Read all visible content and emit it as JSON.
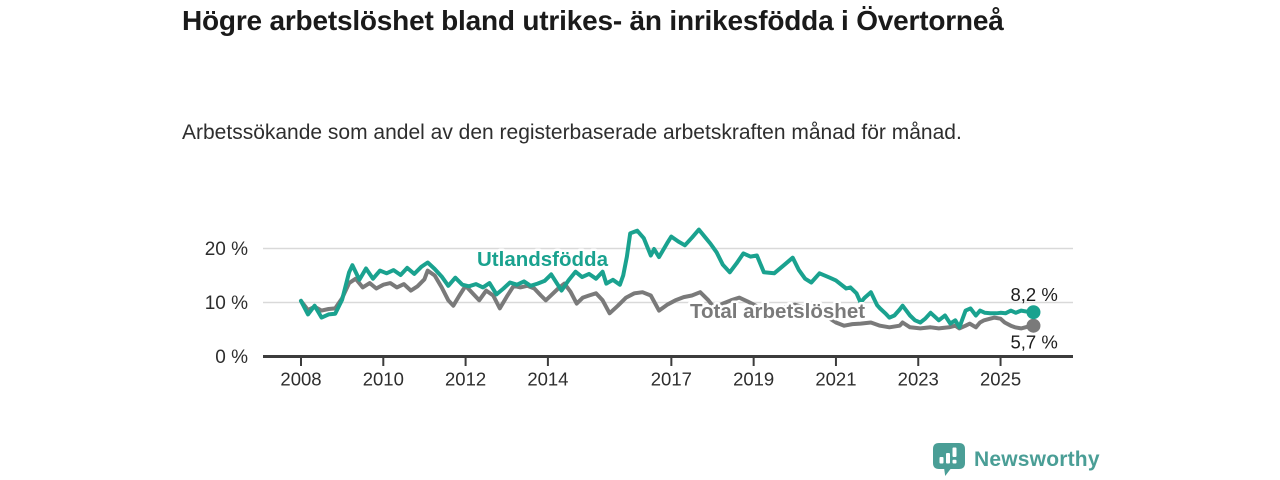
{
  "header": {
    "title": "Högre arbetslöshet bland utrikes- än inrikesfödda i Övertorneå",
    "subtitle": "Arbetssökande som andel av den registerbaserade arbetskraften månad för månad."
  },
  "chart_data": {
    "type": "line",
    "title": "Högre arbetslöshet bland utrikes- än inrikesfödda i Övertorneå",
    "xlabel": "",
    "ylabel": "",
    "x_axis": {
      "tick_labels": [
        "2008",
        "2010",
        "2012",
        "2014",
        "2017",
        "2019",
        "2021",
        "2023",
        "2025"
      ],
      "range": [
        2007.1,
        2026.8
      ]
    },
    "y_axis": {
      "ticks": [
        {
          "value": 0,
          "label": "0 %"
        },
        {
          "value": 10,
          "label": "10 %"
        },
        {
          "value": 20,
          "label": "20 %"
        }
      ],
      "range": [
        0,
        24.5
      ],
      "grid": true
    },
    "legend_position": "inline-labels",
    "colors": {
      "grid": "#d9d9d9",
      "axis": "#3c3c3c",
      "tick_text": "#2e2e2e",
      "value_label": "#1c1c1c"
    },
    "series": [
      {
        "name": "Total arbetslöshet",
        "color": "#7a7a7a",
        "end_label": "5,7 %",
        "end_value": 5.7,
        "end_label_side": "below",
        "points": [
          [
            2008.0,
            10.3
          ],
          [
            2008.17,
            8.6
          ],
          [
            2008.33,
            9.2
          ],
          [
            2008.5,
            8.5
          ],
          [
            2008.67,
            8.8
          ],
          [
            2008.83,
            8.9
          ],
          [
            2009.0,
            10.8
          ],
          [
            2009.17,
            13.6
          ],
          [
            2009.33,
            14.4
          ],
          [
            2009.5,
            12.8
          ],
          [
            2009.67,
            13.6
          ],
          [
            2009.83,
            12.6
          ],
          [
            2010.0,
            13.3
          ],
          [
            2010.17,
            13.6
          ],
          [
            2010.33,
            12.8
          ],
          [
            2010.5,
            13.4
          ],
          [
            2010.67,
            12.2
          ],
          [
            2010.83,
            13.0
          ],
          [
            2011.0,
            14.3
          ],
          [
            2011.08,
            15.9
          ],
          [
            2011.25,
            15.0
          ],
          [
            2011.42,
            12.8
          ],
          [
            2011.58,
            10.4
          ],
          [
            2011.7,
            9.4
          ],
          [
            2011.85,
            11.3
          ],
          [
            2012.0,
            13.1
          ],
          [
            2012.17,
            11.7
          ],
          [
            2012.33,
            10.4
          ],
          [
            2012.5,
            12.2
          ],
          [
            2012.67,
            11.3
          ],
          [
            2012.83,
            8.9
          ],
          [
            2013.0,
            11.1
          ],
          [
            2013.17,
            13.1
          ],
          [
            2013.33,
            12.8
          ],
          [
            2013.5,
            13.1
          ],
          [
            2013.67,
            12.6
          ],
          [
            2013.83,
            11.3
          ],
          [
            2013.95,
            10.4
          ],
          [
            2014.1,
            11.5
          ],
          [
            2014.25,
            12.6
          ],
          [
            2014.4,
            13.5
          ],
          [
            2014.55,
            12.0
          ],
          [
            2014.7,
            9.8
          ],
          [
            2014.85,
            10.9
          ],
          [
            2015.0,
            11.3
          ],
          [
            2015.17,
            11.7
          ],
          [
            2015.33,
            10.4
          ],
          [
            2015.5,
            8.0
          ],
          [
            2015.7,
            9.4
          ],
          [
            2015.9,
            10.9
          ],
          [
            2016.1,
            11.7
          ],
          [
            2016.3,
            11.9
          ],
          [
            2016.5,
            11.3
          ],
          [
            2016.7,
            8.5
          ],
          [
            2016.9,
            9.6
          ],
          [
            2017.1,
            10.4
          ],
          [
            2017.3,
            11.0
          ],
          [
            2017.5,
            11.3
          ],
          [
            2017.7,
            11.9
          ],
          [
            2017.9,
            10.4
          ],
          [
            2018.05,
            8.9
          ],
          [
            2018.25,
            9.8
          ],
          [
            2018.45,
            10.4
          ],
          [
            2018.65,
            10.9
          ],
          [
            2018.85,
            10.2
          ],
          [
            2019.05,
            9.4
          ],
          [
            2019.3,
            8.5
          ],
          [
            2019.55,
            8.8
          ],
          [
            2019.8,
            9.2
          ],
          [
            2020.0,
            9.6
          ],
          [
            2020.25,
            9.0
          ],
          [
            2020.5,
            8.3
          ],
          [
            2020.75,
            7.5
          ],
          [
            2021.0,
            6.3
          ],
          [
            2021.2,
            5.7
          ],
          [
            2021.4,
            6.0
          ],
          [
            2021.6,
            6.1
          ],
          [
            2021.85,
            6.3
          ],
          [
            2022.07,
            5.7
          ],
          [
            2022.3,
            5.4
          ],
          [
            2022.55,
            5.7
          ],
          [
            2022.62,
            6.3
          ],
          [
            2022.8,
            5.4
          ],
          [
            2023.05,
            5.2
          ],
          [
            2023.3,
            5.4
          ],
          [
            2023.5,
            5.2
          ],
          [
            2023.75,
            5.4
          ],
          [
            2023.9,
            5.7
          ],
          [
            2024.0,
            5.2
          ],
          [
            2024.15,
            5.7
          ],
          [
            2024.25,
            6.1
          ],
          [
            2024.4,
            5.4
          ],
          [
            2024.5,
            6.3
          ],
          [
            2024.6,
            6.7
          ],
          [
            2024.85,
            7.2
          ],
          [
            2025.0,
            7.0
          ],
          [
            2025.1,
            6.3
          ],
          [
            2025.25,
            5.7
          ],
          [
            2025.35,
            5.4
          ],
          [
            2025.5,
            5.2
          ],
          [
            2025.65,
            5.5
          ],
          [
            2025.8,
            5.7
          ]
        ]
      },
      {
        "name": "Utlandsfödda",
        "color": "#1aa28f",
        "end_label": "8,2 %",
        "end_value": 8.2,
        "end_label_side": "above",
        "points": [
          [
            2008.0,
            10.3
          ],
          [
            2008.17,
            7.8
          ],
          [
            2008.33,
            9.4
          ],
          [
            2008.5,
            7.2
          ],
          [
            2008.67,
            7.8
          ],
          [
            2008.83,
            7.9
          ],
          [
            2009.0,
            10.5
          ],
          [
            2009.17,
            15.6
          ],
          [
            2009.25,
            16.9
          ],
          [
            2009.42,
            14.2
          ],
          [
            2009.58,
            16.3
          ],
          [
            2009.75,
            14.4
          ],
          [
            2009.92,
            15.9
          ],
          [
            2010.08,
            15.4
          ],
          [
            2010.25,
            16.0
          ],
          [
            2010.42,
            15.1
          ],
          [
            2010.58,
            16.4
          ],
          [
            2010.75,
            15.3
          ],
          [
            2010.92,
            16.6
          ],
          [
            2011.08,
            17.4
          ],
          [
            2011.25,
            16.2
          ],
          [
            2011.42,
            14.8
          ],
          [
            2011.58,
            13.1
          ],
          [
            2011.75,
            14.6
          ],
          [
            2011.92,
            13.3
          ],
          [
            2012.08,
            13.0
          ],
          [
            2012.25,
            13.4
          ],
          [
            2012.42,
            12.8
          ],
          [
            2012.58,
            13.6
          ],
          [
            2012.75,
            11.5
          ],
          [
            2012.92,
            12.6
          ],
          [
            2013.08,
            13.7
          ],
          [
            2013.25,
            13.3
          ],
          [
            2013.42,
            13.9
          ],
          [
            2013.58,
            13.1
          ],
          [
            2013.75,
            13.5
          ],
          [
            2013.92,
            14.0
          ],
          [
            2014.08,
            15.2
          ],
          [
            2014.33,
            12.2
          ],
          [
            2014.5,
            14.1
          ],
          [
            2014.67,
            15.7
          ],
          [
            2014.83,
            14.7
          ],
          [
            2015.0,
            15.3
          ],
          [
            2015.17,
            14.4
          ],
          [
            2015.33,
            15.7
          ],
          [
            2015.42,
            13.5
          ],
          [
            2015.58,
            14.2
          ],
          [
            2015.75,
            13.3
          ],
          [
            2015.83,
            15.0
          ],
          [
            2015.92,
            18.5
          ],
          [
            2016.0,
            22.8
          ],
          [
            2016.17,
            23.3
          ],
          [
            2016.33,
            21.9
          ],
          [
            2016.5,
            18.7
          ],
          [
            2016.58,
            19.9
          ],
          [
            2016.7,
            18.4
          ],
          [
            2016.9,
            21.0
          ],
          [
            2017.0,
            22.2
          ],
          [
            2017.17,
            21.3
          ],
          [
            2017.33,
            20.6
          ],
          [
            2017.5,
            22.0
          ],
          [
            2017.67,
            23.5
          ],
          [
            2017.83,
            22.0
          ],
          [
            2017.95,
            20.9
          ],
          [
            2018.1,
            19.3
          ],
          [
            2018.25,
            17.0
          ],
          [
            2018.42,
            15.6
          ],
          [
            2018.58,
            17.2
          ],
          [
            2018.75,
            19.1
          ],
          [
            2018.92,
            18.5
          ],
          [
            2019.08,
            18.7
          ],
          [
            2019.25,
            15.6
          ],
          [
            2019.5,
            15.4
          ],
          [
            2019.75,
            17.0
          ],
          [
            2019.95,
            18.3
          ],
          [
            2020.1,
            16.0
          ],
          [
            2020.25,
            14.4
          ],
          [
            2020.4,
            13.7
          ],
          [
            2020.6,
            15.4
          ],
          [
            2020.85,
            14.6
          ],
          [
            2021.0,
            14.1
          ],
          [
            2021.25,
            12.6
          ],
          [
            2021.35,
            12.8
          ],
          [
            2021.5,
            11.7
          ],
          [
            2021.6,
            10.0
          ],
          [
            2021.7,
            10.9
          ],
          [
            2021.85,
            11.9
          ],
          [
            2022.0,
            9.5
          ],
          [
            2022.07,
            8.9
          ],
          [
            2022.2,
            8.0
          ],
          [
            2022.3,
            7.2
          ],
          [
            2022.42,
            7.6
          ],
          [
            2022.55,
            8.7
          ],
          [
            2022.62,
            9.4
          ],
          [
            2022.8,
            7.6
          ],
          [
            2022.92,
            6.7
          ],
          [
            2023.05,
            6.3
          ],
          [
            2023.17,
            7.0
          ],
          [
            2023.3,
            8.1
          ],
          [
            2023.5,
            6.7
          ],
          [
            2023.65,
            7.6
          ],
          [
            2023.78,
            6.1
          ],
          [
            2023.9,
            6.7
          ],
          [
            2024.0,
            5.4
          ],
          [
            2024.15,
            8.5
          ],
          [
            2024.27,
            8.9
          ],
          [
            2024.4,
            7.6
          ],
          [
            2024.5,
            8.5
          ],
          [
            2024.62,
            8.1
          ],
          [
            2024.75,
            8.0
          ],
          [
            2024.9,
            8.0
          ],
          [
            2025.0,
            8.1
          ],
          [
            2025.12,
            8.0
          ],
          [
            2025.25,
            8.5
          ],
          [
            2025.37,
            8.1
          ],
          [
            2025.5,
            8.5
          ],
          [
            2025.65,
            8.3
          ],
          [
            2025.8,
            8.2
          ]
        ]
      }
    ]
  },
  "footer": {
    "brand": "Newsworthy",
    "icon": "bar-chart-speech-bubble-icon",
    "brand_color": "#4a9e96"
  }
}
